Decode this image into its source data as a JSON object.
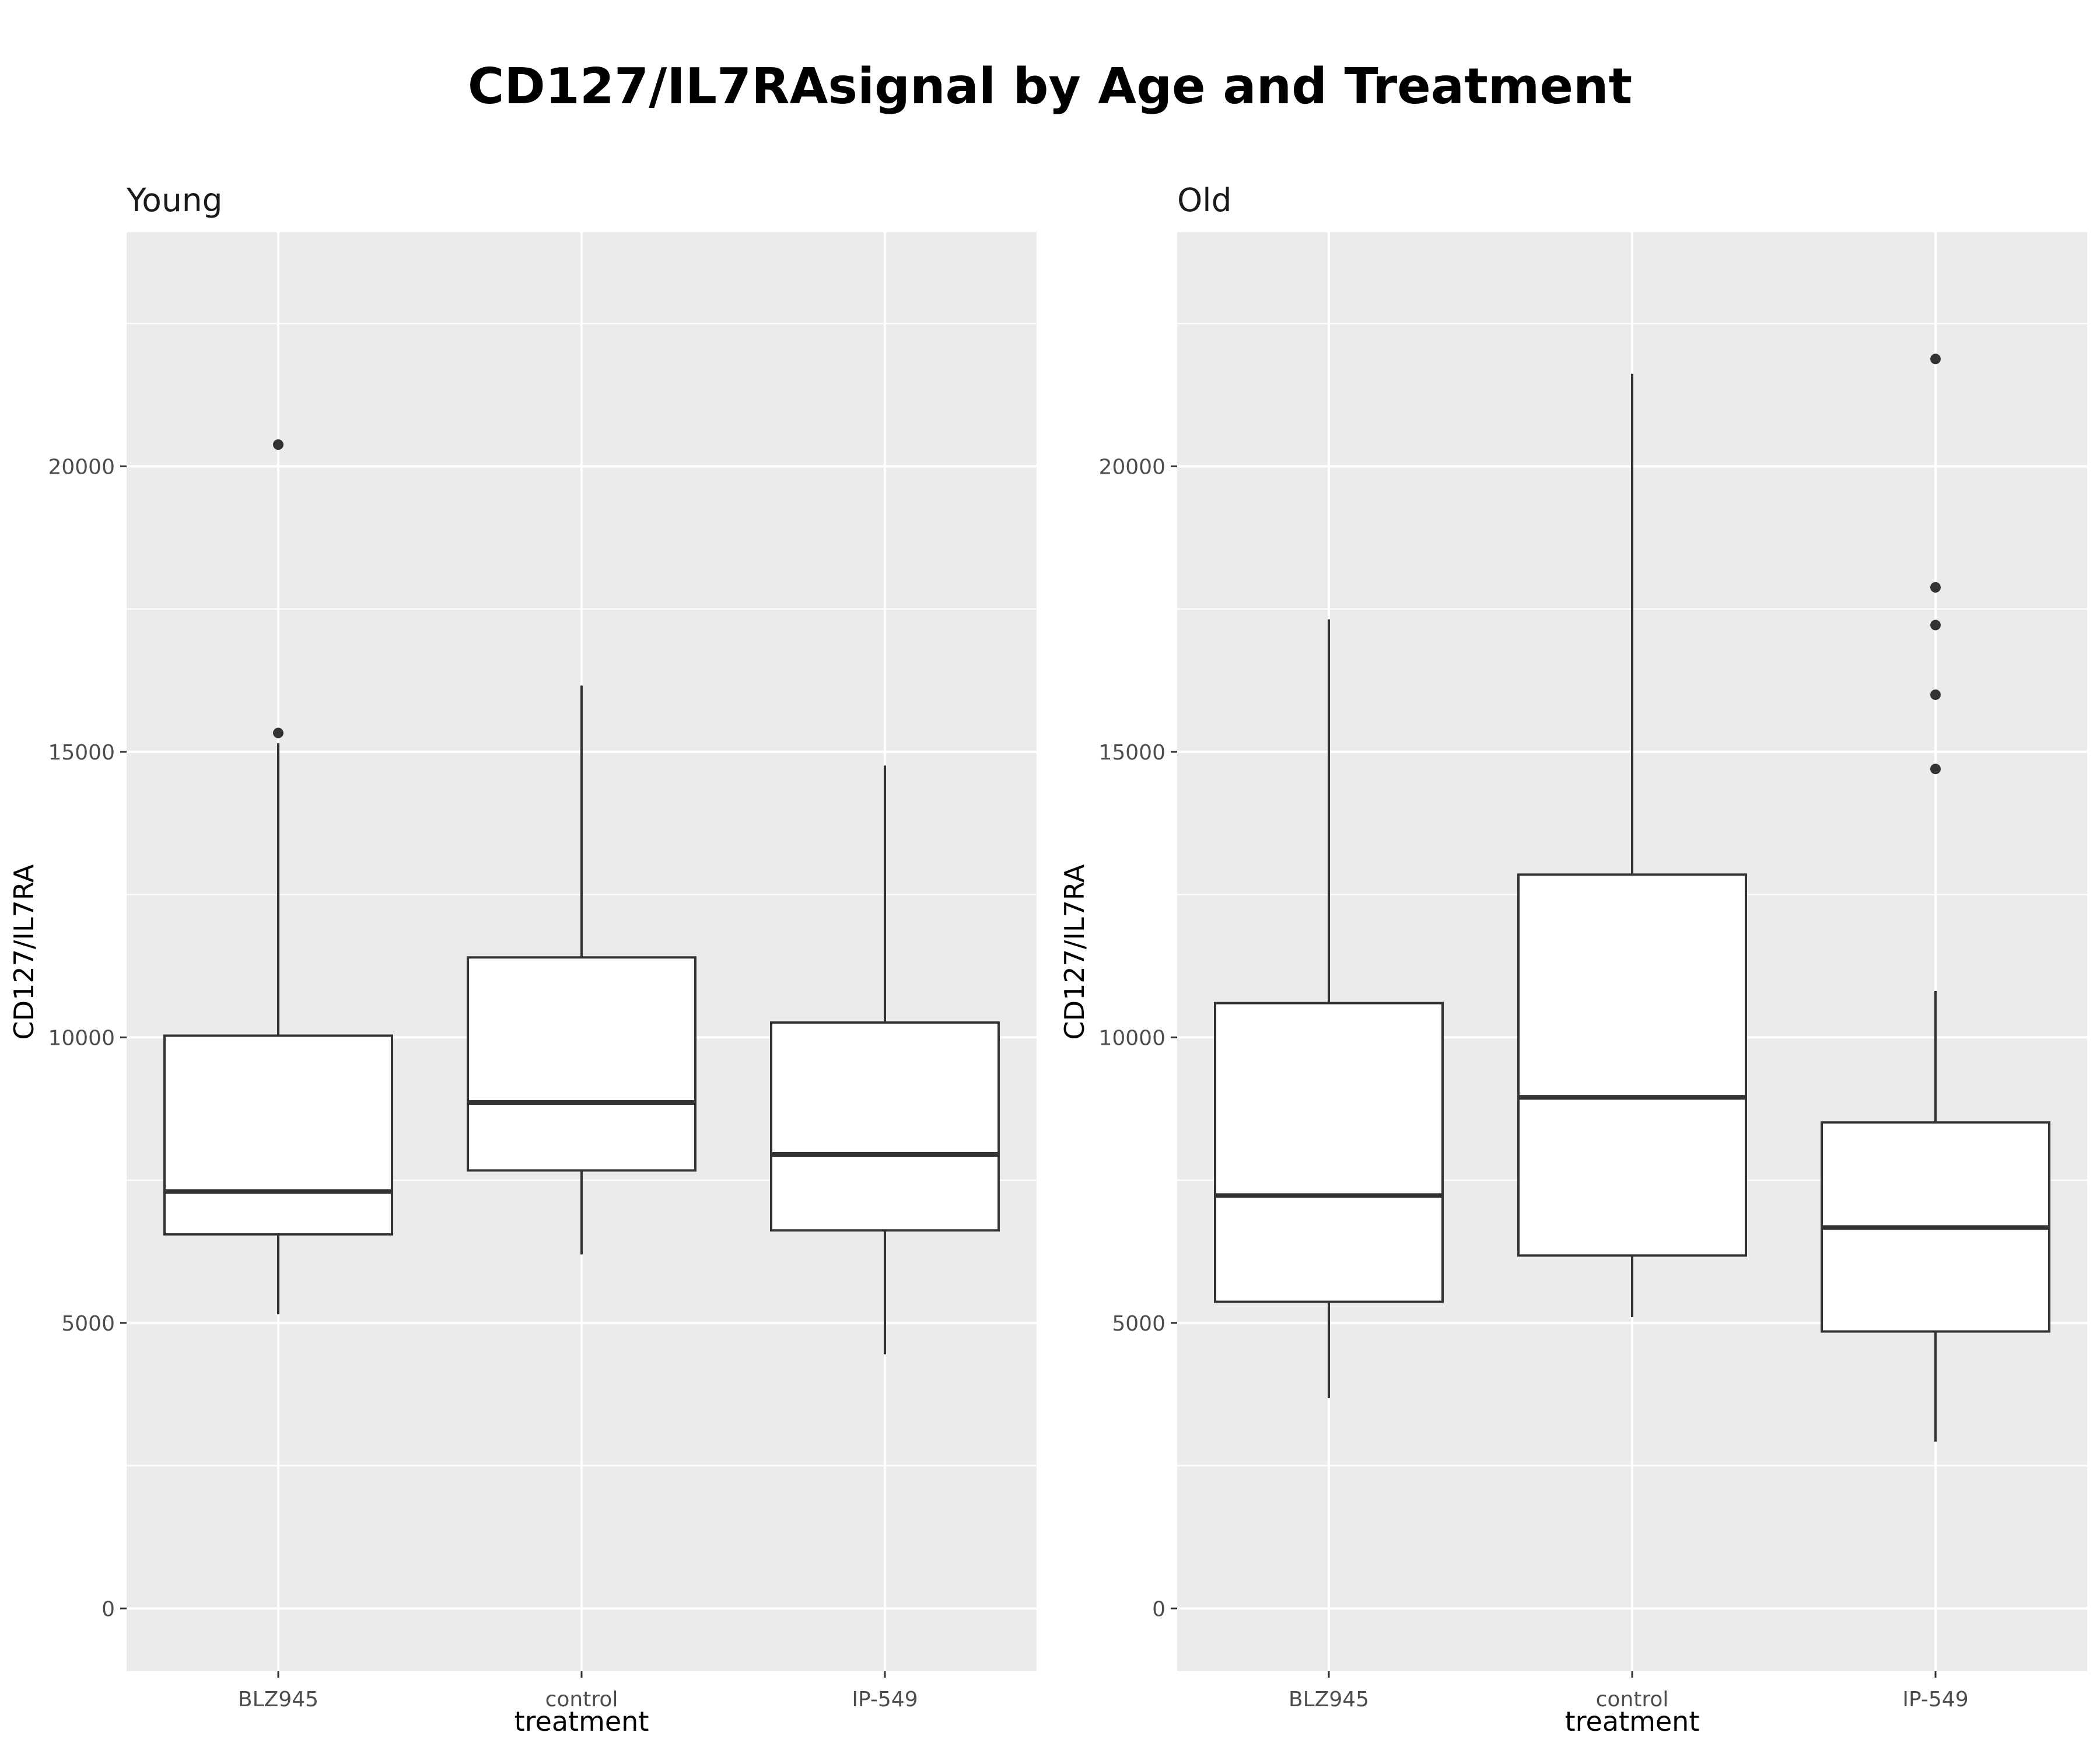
{
  "colors": {
    "panel_background": "#ebebeb",
    "grid": "#ffffff",
    "box_line": "#333333",
    "box_fill": "#ffffff",
    "outlier": "#333333"
  },
  "chart_data": {
    "type": "boxplot",
    "title": "CD127/IL7RAsignal by Age and Treatment",
    "xlabel": "treatment",
    "ylabel": "CD127/IL7RA",
    "ylim": [
      -1100,
      24100
    ],
    "yticks": [
      0,
      5000,
      10000,
      15000,
      20000
    ],
    "grid": true,
    "categories": [
      "BLZ945",
      "control",
      "IP-549"
    ],
    "panels": [
      {
        "name": "Young",
        "boxes": [
          {
            "category": "BLZ945",
            "whisker_low": 5150,
            "q1": 6550,
            "median": 7300,
            "q3": 10030,
            "whisker_high": 15150,
            "outliers": [
              15330,
              20380
            ]
          },
          {
            "category": "control",
            "whisker_low": 6200,
            "q1": 7670,
            "median": 8860,
            "q3": 11400,
            "whisker_high": 16160,
            "outliers": []
          },
          {
            "category": "IP-549",
            "whisker_low": 4450,
            "q1": 6620,
            "median": 7950,
            "q3": 10260,
            "whisker_high": 14760,
            "outliers": []
          }
        ]
      },
      {
        "name": "Old",
        "boxes": [
          {
            "category": "BLZ945",
            "whisker_low": 3680,
            "q1": 5370,
            "median": 7230,
            "q3": 10600,
            "whisker_high": 17320,
            "outliers": []
          },
          {
            "category": "control",
            "whisker_low": 5100,
            "q1": 6180,
            "median": 8950,
            "q3": 12850,
            "whisker_high": 21620,
            "outliers": []
          },
          {
            "category": "IP-549",
            "whisker_low": 2920,
            "q1": 4850,
            "median": 6670,
            "q3": 8510,
            "whisker_high": 10810,
            "outliers": [
              14700,
              16000,
              17220,
              17880,
              21880
            ]
          }
        ]
      }
    ]
  }
}
